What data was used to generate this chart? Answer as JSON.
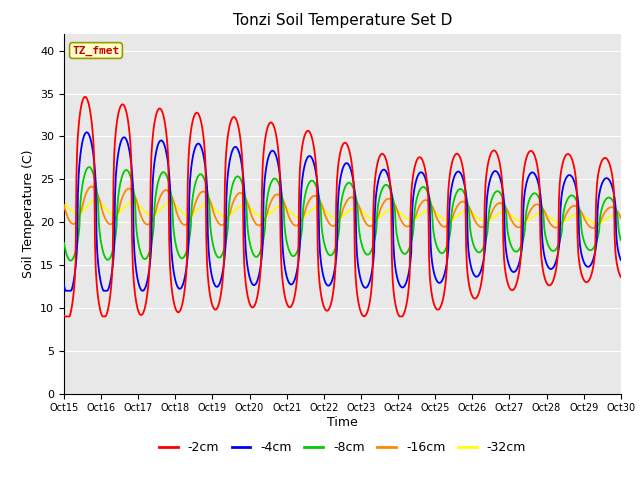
{
  "title": "Tonzi Soil Temperature Set D",
  "xlabel": "Time",
  "ylabel": "Soil Temperature (C)",
  "ylim": [
    0,
    42
  ],
  "yticks": [
    0,
    5,
    10,
    15,
    20,
    25,
    30,
    35,
    40
  ],
  "x_labels": [
    "Oct 15",
    "Oct 16",
    "Oct 17",
    "Oct 18",
    "Oct 19",
    "Oct 20",
    "Oct 21",
    "Oct 22",
    "Oct 23",
    "Oct 24",
    "Oct 25",
    "Oct 26",
    "Oct 27",
    "Oct 28",
    "Oct 29",
    "Oct 30"
  ],
  "colors": {
    "-2cm": "#ff0000",
    "-4cm": "#0000ff",
    "-8cm": "#00cc00",
    "-16cm": "#ff8800",
    "-32cm": "#ffff00"
  },
  "annotation_text": "TZ_fmet",
  "annotation_color": "#cc0000",
  "annotation_bg": "#ffffcc",
  "annotation_border": "#999900",
  "background_color": "#e8e8e8",
  "legend_labels": [
    "-2cm",
    "-4cm",
    "-8cm",
    "-16cm",
    "-32cm"
  ]
}
